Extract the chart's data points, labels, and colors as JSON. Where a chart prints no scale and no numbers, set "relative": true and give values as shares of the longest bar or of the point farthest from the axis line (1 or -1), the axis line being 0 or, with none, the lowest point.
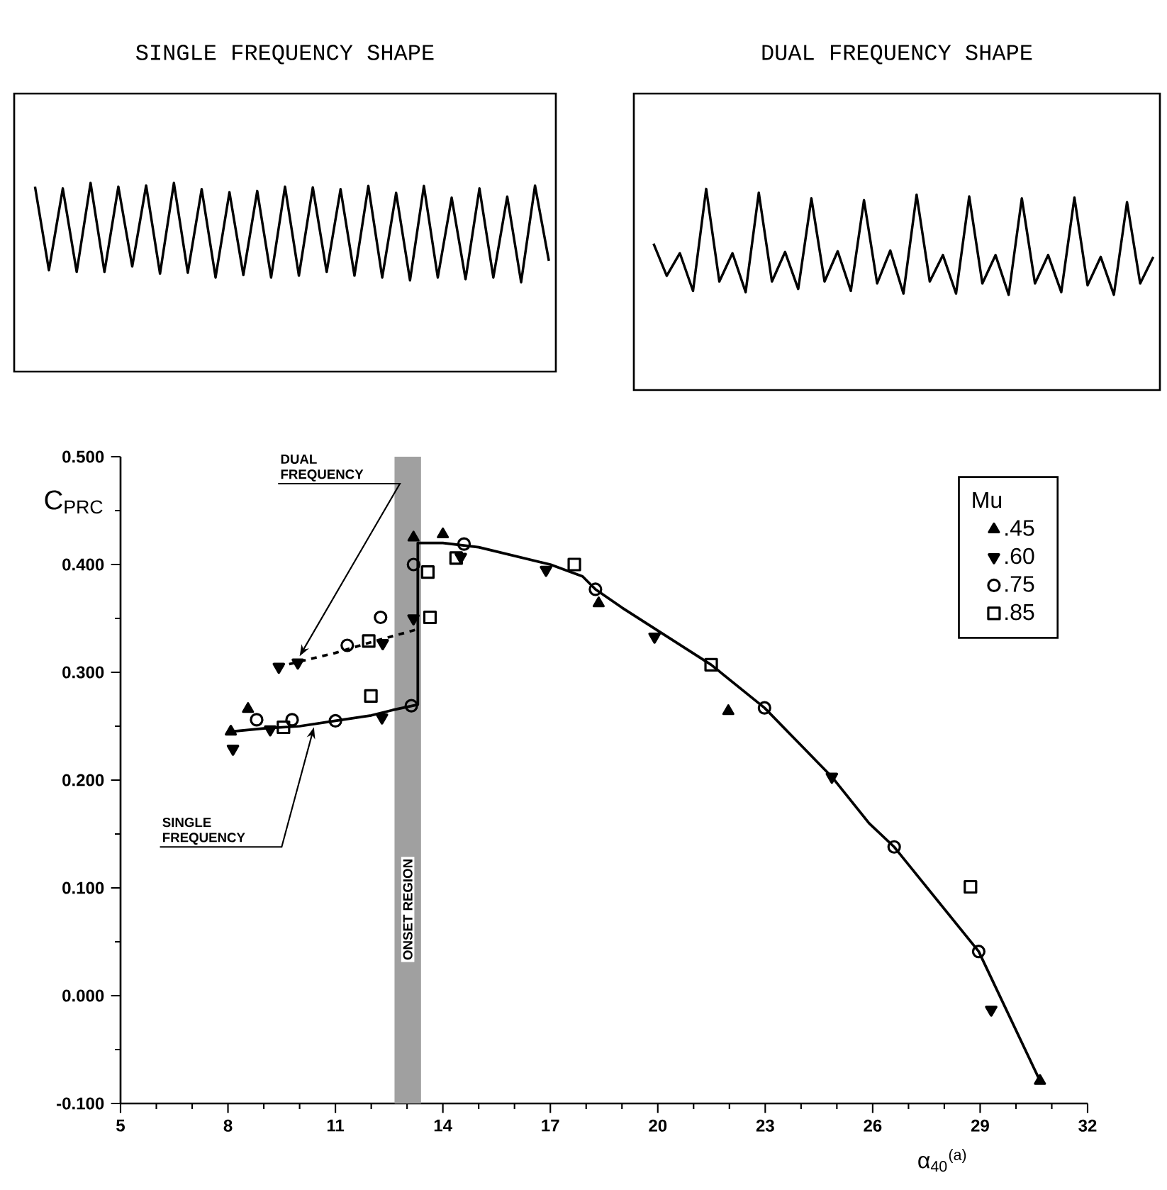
{
  "chart_data": [
    {
      "type": "line",
      "title": "SINGLE FREQUENCY SHAPE",
      "relative": true,
      "color": "#000000",
      "categories": [
        null,
        null,
        null,
        null,
        null,
        null,
        null,
        null,
        null,
        null,
        null,
        null,
        null,
        null,
        null,
        null,
        null,
        null,
        null,
        null,
        null,
        null,
        null,
        null,
        null,
        null,
        null,
        null,
        null,
        null,
        null,
        null,
        null,
        null,
        null,
        null,
        null,
        null
      ],
      "values": [
        0.963,
        0.122,
        0.944,
        0.104,
        1,
        0.104,
        0.963,
        0.159,
        0.974,
        0.085,
        1,
        0.096,
        0.937,
        0.048,
        0.907,
        0.074,
        0.919,
        0.048,
        0.963,
        0.067,
        0.956,
        0.104,
        0.937,
        0.067,
        0.97,
        0.048,
        0.9,
        0.019,
        0.97,
        0.048,
        0.852,
        0.03,
        0.944,
        0.048,
        0.863,
        0,
        0.974,
        0.215
      ]
    },
    {
      "type": "line",
      "title": "DUAL FREQUENCY SHAPE",
      "relative": true,
      "color": "#000000",
      "categories": [
        null,
        null,
        null,
        null,
        null,
        null,
        null,
        null,
        null,
        null,
        null,
        null,
        null,
        null,
        null,
        null,
        null,
        null,
        null,
        null,
        null,
        null,
        null,
        null,
        null,
        null,
        null,
        null,
        null,
        null,
        null,
        null,
        null,
        null,
        null,
        null,
        null,
        null,
        null
      ],
      "values": [
        0.482,
        0.179,
        0.393,
        0.036,
        1,
        0.125,
        0.393,
        0.025,
        0.964,
        0.125,
        0.404,
        0.054,
        0.911,
        0.125,
        0.411,
        0.036,
        0.893,
        0.107,
        0.418,
        0.011,
        0.946,
        0.125,
        0.375,
        0.011,
        0.929,
        0.107,
        0.375,
        0,
        0.911,
        0.107,
        0.375,
        0.025,
        0.918,
        0.089,
        0.357,
        0,
        0.875,
        0.107,
        0.357
      ]
    },
    {
      "type": "scatter",
      "xlabel": "α$_{40}$$^{(a)}$",
      "ylabel": "C$_{PRC}$",
      "legend_title": "Mu",
      "legend": "top right",
      "xlim": [
        5,
        32
      ],
      "xticks": [
        5,
        8,
        11,
        14,
        17,
        20,
        23,
        26,
        29,
        32
      ],
      "ylim": [
        -0.1,
        0.5
      ],
      "yticks": [
        {
          "value": -0.1,
          "label": "-0.100"
        },
        {
          "value": 0,
          "label": "0.000"
        },
        {
          "value": 0.1,
          "label": "0.100"
        },
        {
          "value": 0.2,
          "label": "0.200"
        },
        {
          "value": 0.3,
          "label": "0.300"
        },
        {
          "value": 0.4,
          "label": "0.400"
        },
        {
          "value": 0.5,
          "label": "0.500"
        }
      ],
      "bands": [
        {
          "axis": "x",
          "from": 12.65,
          "to": 13.39,
          "label": "ONSET REGION",
          "color": "#a0a0a0"
        }
      ],
      "annotations": [
        {
          "text": "DUAL FREQUENCY",
          "x": 10.0,
          "y": 0.315
        },
        {
          "text": "SINGLE FREQUENCY",
          "x": 10.4,
          "y": 0.249
        }
      ],
      "series": [
        {
          "name": ".45",
          "color": "#000000",
          "marker": "triangle",
          "x": [
            8.08,
            8.56,
            13.18,
            14.0,
            18.35,
            21.97,
            30.67
          ],
          "values": [
            0.245,
            0.266,
            0.425,
            0.428,
            0.364,
            0.264,
            -0.079
          ]
        },
        {
          "name": ".60",
          "color": "#000000",
          "marker": "triangle down",
          "x": [
            8.14,
            9.18,
            9.42,
            9.95,
            12.3,
            12.32,
            13.18,
            14.5,
            16.88,
            19.91,
            24.86,
            29.31
          ],
          "values": [
            0.229,
            0.247,
            0.305,
            0.309,
            0.258,
            0.327,
            0.35,
            0.407,
            0.395,
            0.333,
            0.203,
            -0.013
          ]
        },
        {
          "name": ".75",
          "color": "#000000",
          "marker": "circle",
          "x": [
            8.8,
            9.79,
            11.0,
            11.33,
            12.26,
            13.12,
            13.18,
            14.59,
            18.26,
            22.98,
            26.6,
            28.96
          ],
          "values": [
            0.256,
            0.256,
            0.255,
            0.325,
            0.351,
            0.269,
            0.4,
            0.419,
            0.377,
            0.267,
            0.138,
            0.041
          ]
        },
        {
          "name": ".85",
          "color": "#000000",
          "marker": "square",
          "x": [
            9.55,
            11.93,
            11.99,
            13.58,
            13.64,
            14.37,
            17.67,
            21.49,
            28.73
          ],
          "values": [
            0.249,
            0.329,
            0.278,
            0.393,
            0.351,
            0.406,
            0.4,
            0.307,
            0.101
          ]
        },
        {
          "type": "line",
          "color": "#000000",
          "line_style": "solid",
          "marker": "none",
          "x": [
            8.08,
            9.0,
            10.0,
            11.0,
            12.0,
            12.6,
            13.3,
            13.3,
            13.6,
            14.0,
            15.0,
            17.0,
            17.9,
            18.26,
            19.0,
            21.49,
            22.98,
            24.86,
            25.9,
            26.6,
            28.96,
            30.67
          ],
          "values": [
            0.245,
            0.248,
            0.25,
            0.255,
            0.26,
            0.265,
            0.27,
            0.42,
            0.42,
            0.42,
            0.416,
            0.4,
            0.389,
            0.377,
            0.36,
            0.307,
            0.267,
            0.203,
            0.16,
            0.138,
            0.041,
            -0.079
          ]
        },
        {
          "type": "line",
          "color": "#000000",
          "line_style": "dashed",
          "marker": "none",
          "x": [
            9.4,
            10.0,
            11.0,
            12.0,
            13.3
          ],
          "values": [
            0.305,
            0.31,
            0.318,
            0.328,
            0.34
          ]
        }
      ]
    }
  ]
}
